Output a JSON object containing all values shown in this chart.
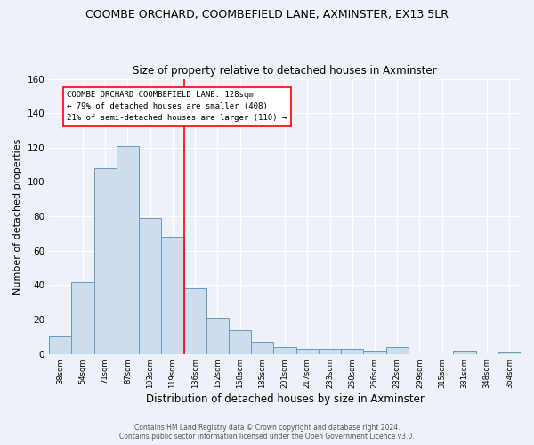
{
  "title": "COOMBE ORCHARD, COOMBEFIELD LANE, AXMINSTER, EX13 5LR",
  "subtitle": "Size of property relative to detached houses in Axminster",
  "xlabel": "Distribution of detached houses by size in Axminster",
  "ylabel": "Number of detached properties",
  "bar_labels": [
    "38sqm",
    "54sqm",
    "71sqm",
    "87sqm",
    "103sqm",
    "119sqm",
    "136sqm",
    "152sqm",
    "168sqm",
    "185sqm",
    "201sqm",
    "217sqm",
    "233sqm",
    "250sqm",
    "266sqm",
    "282sqm",
    "299sqm",
    "315sqm",
    "331sqm",
    "348sqm",
    "364sqm"
  ],
  "bar_heights": [
    10,
    42,
    108,
    121,
    79,
    68,
    38,
    21,
    14,
    7,
    4,
    3,
    3,
    3,
    2,
    4,
    0,
    0,
    2,
    0,
    1
  ],
  "bar_color": "#ccdded",
  "bar_edge_color": "#6699bb",
  "vline_x": 5.5,
  "vline_color": "red",
  "annotation_title": "COOMBE ORCHARD COOMBEFIELD LANE: 128sqm",
  "annotation_line2": "← 79% of detached houses are smaller (408)",
  "annotation_line3": "21% of semi-detached houses are larger (110) →",
  "annotation_box_color": "#ffffff",
  "annotation_box_edge": "red",
  "ylim": [
    0,
    160
  ],
  "yticks": [
    0,
    20,
    40,
    60,
    80,
    100,
    120,
    140,
    160
  ],
  "footer_line1": "Contains HM Land Registry data © Crown copyright and database right 2024.",
  "footer_line2": "Contains public sector information licensed under the Open Government Licence v3.0.",
  "background_color": "#eef2f8",
  "grid_color": "#dde6f0",
  "title_fontsize": 9,
  "subtitle_fontsize": 8.5,
  "xlabel_fontsize": 8.5,
  "ylabel_fontsize": 8
}
